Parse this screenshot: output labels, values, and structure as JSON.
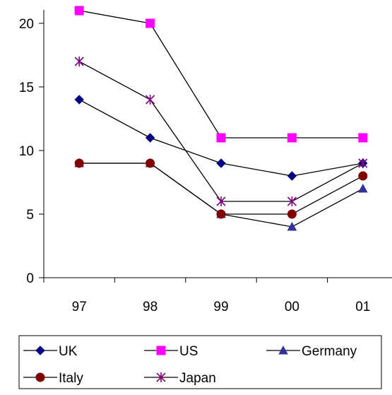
{
  "chart_data": {
    "type": "line",
    "title": "",
    "xlabel": "",
    "ylabel": "",
    "categories": [
      "97",
      "98",
      "99",
      "00",
      "01"
    ],
    "ylim": [
      0,
      20
    ],
    "yticks": [
      0,
      5,
      10,
      15,
      20
    ],
    "grid": false,
    "legend_position": "bottom",
    "series": [
      {
        "name": "UK",
        "values": [
          14,
          11,
          9,
          8,
          9
        ],
        "color": "#000080",
        "marker": "diamond"
      },
      {
        "name": "US",
        "values": [
          21,
          20,
          11,
          11,
          11
        ],
        "color": "#FF00FF",
        "marker": "square"
      },
      {
        "name": "Germany",
        "values": [
          9,
          9,
          5,
          4,
          7
        ],
        "color": "#333399",
        "marker": "triangle"
      },
      {
        "name": "Italy",
        "values": [
          9,
          9,
          5,
          5,
          8
        ],
        "color": "#800000",
        "marker": "circle"
      },
      {
        "name": "Japan",
        "values": [
          17,
          14,
          6,
          6,
          9
        ],
        "color": "#800080",
        "marker": "asterisk"
      }
    ]
  }
}
